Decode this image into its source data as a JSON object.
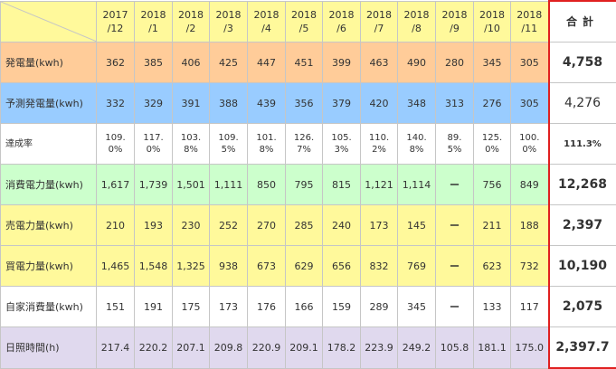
{
  "header": {
    "months": [
      [
        "2017",
        "/12"
      ],
      [
        "2018",
        "/1"
      ],
      [
        "2018",
        "/2"
      ],
      [
        "2018",
        "/3"
      ],
      [
        "2018",
        "/4"
      ],
      [
        "2018",
        "/5"
      ],
      [
        "2018",
        "/6"
      ],
      [
        "2018",
        "/7"
      ],
      [
        "2018",
        "/8"
      ],
      [
        "2018",
        "/9"
      ],
      [
        "2018",
        "/10"
      ],
      [
        "2018",
        "/11"
      ]
    ],
    "total_label": "合計"
  },
  "rows": [
    {
      "label": "発電量(kwh)",
      "bg": "#ffcc99",
      "values": [
        "362",
        "385",
        "406",
        "425",
        "447",
        "451",
        "399",
        "463",
        "490",
        "280",
        "345",
        "305"
      ],
      "total": "4,758"
    },
    {
      "label": "予測発電量(kwh)",
      "bg": "#99ccff",
      "values": [
        "332",
        "329",
        "391",
        "388",
        "439",
        "356",
        "379",
        "420",
        "348",
        "313",
        "276",
        "305"
      ],
      "total": "4,276"
    },
    {
      "label": "達成率",
      "bg": "#ffffff",
      "values": [
        "109.0%",
        "117.0%",
        "103.8%",
        "109.5%",
        "101.8%",
        "126.7%",
        "105.3%",
        "110.2%",
        "140.8%",
        "89.5%",
        "125.0%",
        "100.0%"
      ],
      "total": "111.3%"
    },
    {
      "label": "消費電力量(kwh)",
      "bg": "#ccffcc",
      "values": [
        "1,617",
        "1,739",
        "1,501",
        "1,111",
        "850",
        "795",
        "815",
        "1,121",
        "1,114",
        "ー",
        "756",
        "849"
      ],
      "total": "12,268"
    },
    {
      "label": "売電力量(kwh)",
      "bg": "#fff99b",
      "values": [
        "210",
        "193",
        "230",
        "252",
        "270",
        "285",
        "240",
        "173",
        "145",
        "ー",
        "211",
        "188"
      ],
      "total": "2,397"
    },
    {
      "label": "買電力量(kwh)",
      "bg": "#fff99b",
      "values": [
        "1,465",
        "1,548",
        "1,325",
        "938",
        "673",
        "629",
        "656",
        "832",
        "769",
        "ー",
        "623",
        "732"
      ],
      "total": "10,190"
    },
    {
      "label": "自家消費量(kwh)",
      "bg": "#ffffff",
      "values": [
        "151",
        "191",
        "175",
        "173",
        "176",
        "166",
        "159",
        "289",
        "345",
        "ー",
        "133",
        "117"
      ],
      "total": "2,075"
    },
    {
      "label": "日照時間(h)",
      "bg": "#e0d9ee",
      "values": [
        "217.4",
        "220.2",
        "207.1",
        "209.8",
        "220.9",
        "209.1",
        "178.2",
        "223.9",
        "249.2",
        "105.8",
        "181.1",
        "175.0"
      ],
      "total": "2,397.7"
    }
  ],
  "colors": {
    "header": "#fff99b",
    "total_border": "#e02020",
    "grid": "#c6c6c6"
  }
}
